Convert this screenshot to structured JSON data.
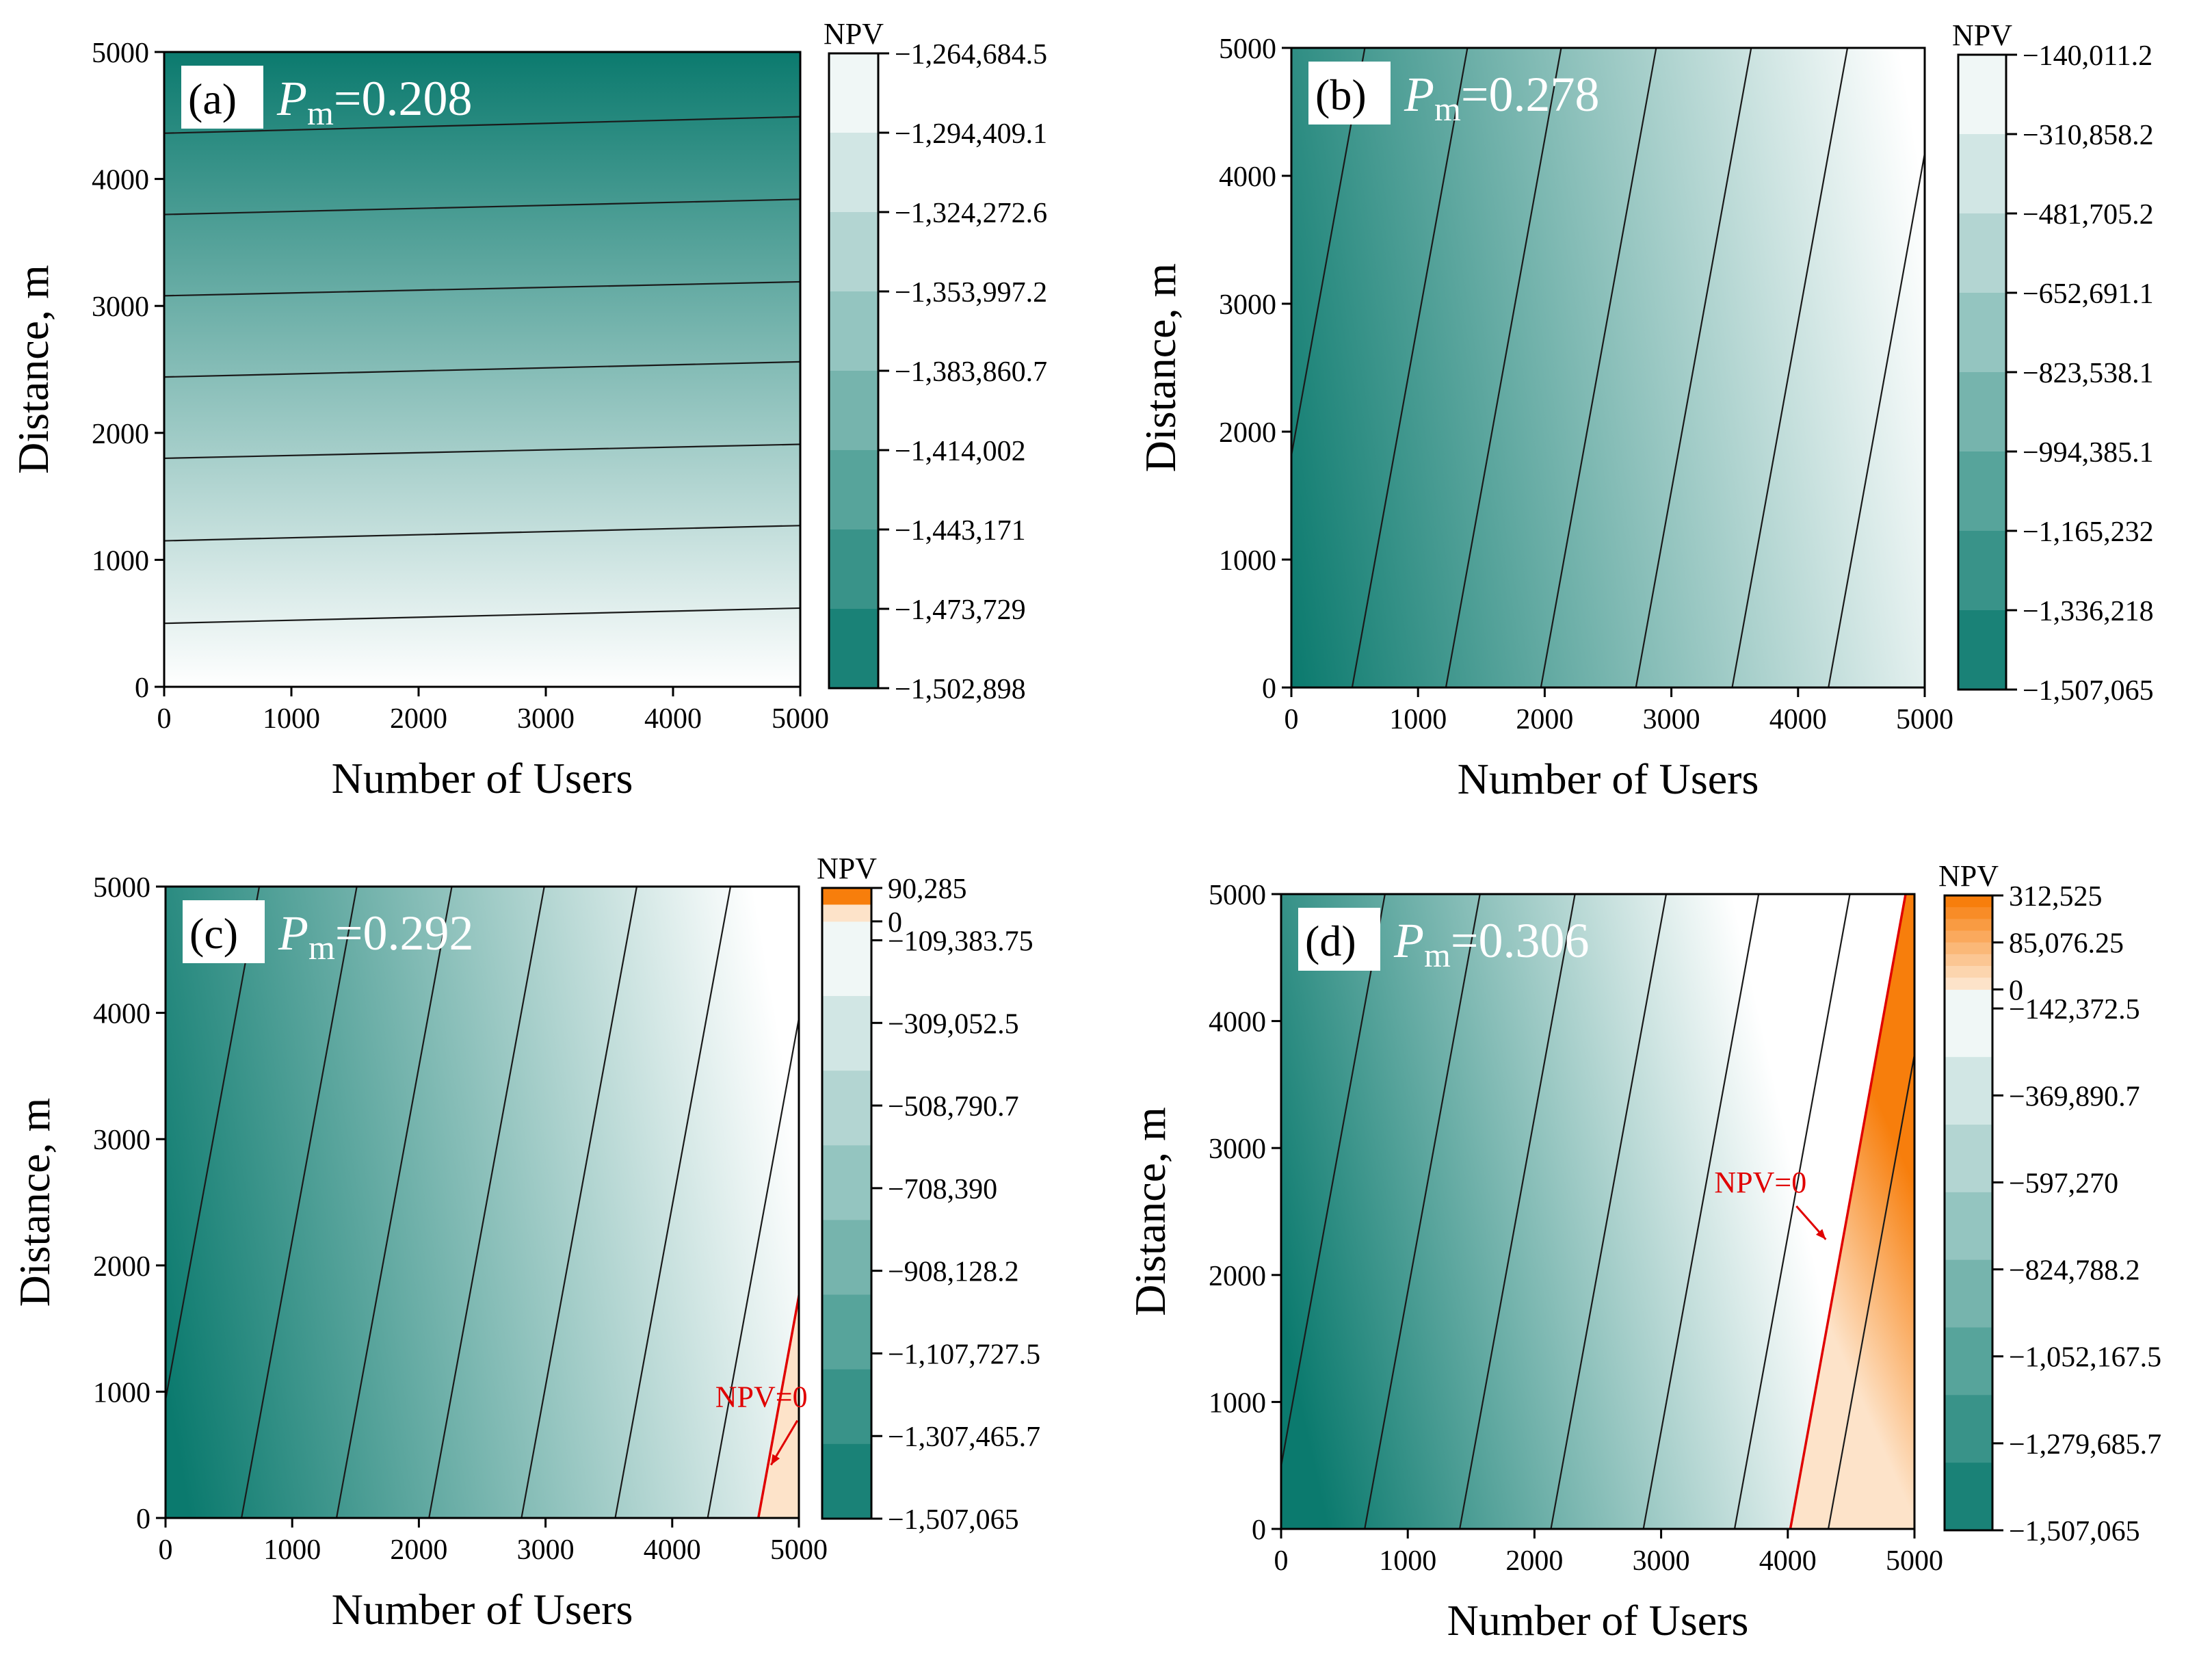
{
  "figure": {
    "background": "#ffffff",
    "colors": {
      "low": "#0b7a6e",
      "high": "#ffffff",
      "pos_low": "#fde3c9",
      "pos_high": "#f77e0c",
      "contour": "#1a1a1a",
      "zero_line": "#e00000"
    }
  },
  "chart_data": [
    {
      "type": "heatmap",
      "panel": "(a)",
      "pm_symbol": "P",
      "pm_sub": "m",
      "pm_value": "=0.208",
      "xlabel": "Number of Users",
      "ylabel": "Distance, m",
      "xlim": [
        0,
        5000
      ],
      "ylim": [
        0,
        5000
      ],
      "xticks": [
        "0",
        "1000",
        "2000",
        "3000",
        "4000",
        "5000"
      ],
      "yticks": [
        "0",
        "1000",
        "2000",
        "3000",
        "4000",
        "5000"
      ],
      "colorbar_title": "NPV",
      "colorbar_min": -1502898,
      "colorbar_max": -1264684.5,
      "colorbar_labels": [
        "−1,264,684.5",
        "−1,294,409.1",
        "−1,324,272.6",
        "−1,353,997.2",
        "−1,383,860.7",
        "−1,414,002",
        "−1,443,171",
        "−1,473,729",
        "−1,502,898"
      ],
      "positive_levels": 0,
      "contour_mode": "horizontal",
      "contour_lines": [
        {
          "y_at_x0": 500,
          "y_at_x5000": 620
        },
        {
          "y_at_x0": 1150,
          "y_at_x5000": 1270
        },
        {
          "y_at_x0": 1800,
          "y_at_x5000": 1910
        },
        {
          "y_at_x0": 2440,
          "y_at_x5000": 2560
        },
        {
          "y_at_x0": 3080,
          "y_at_x5000": 3190
        },
        {
          "y_at_x0": 3720,
          "y_at_x5000": 3840
        },
        {
          "y_at_x0": 4360,
          "y_at_x5000": 4490
        }
      ],
      "gradient_range": [
        0,
        5000
      ],
      "zero_label": ""
    },
    {
      "type": "heatmap",
      "panel": "(b)",
      "pm_symbol": "P",
      "pm_sub": "m",
      "pm_value": "=0.278",
      "xlabel": "Number of Users",
      "ylabel": "Distance, m",
      "xlim": [
        0,
        5000
      ],
      "ylim": [
        0,
        5000
      ],
      "xticks": [
        "0",
        "1000",
        "2000",
        "3000",
        "4000",
        "5000"
      ],
      "yticks": [
        "0",
        "1000",
        "2000",
        "3000",
        "4000",
        "5000"
      ],
      "colorbar_title": "NPV",
      "colorbar_min": -1507065,
      "colorbar_max": -140011.2,
      "colorbar_labels": [
        "−140,011.2",
        "−310,858.2",
        "−481,705.2",
        "−652,691.1",
        "−823,538.1",
        "−994,385.1",
        "−1,165,232",
        "−1,336,218",
        "−1,507,065"
      ],
      "positive_levels": 0,
      "contour_mode": "slanted",
      "contour_lines": [
        {
          "x_at_y0": -330,
          "x_at_y5000": 580
        },
        {
          "x_at_y0": 480,
          "x_at_y5000": 1390
        },
        {
          "x_at_y0": 1220,
          "x_at_y5000": 2130
        },
        {
          "x_at_y0": 1970,
          "x_at_y5000": 2880
        },
        {
          "x_at_y0": 2720,
          "x_at_y5000": 3630
        },
        {
          "x_at_y0": 3480,
          "x_at_y5000": 4390
        },
        {
          "x_at_y0": 4240,
          "x_at_y5000": 5150
        }
      ],
      "gradient_range": [
        -330,
        5150
      ],
      "zero_label": ""
    },
    {
      "type": "heatmap",
      "panel": "(c)",
      "pm_symbol": "P",
      "pm_sub": "m",
      "pm_value": "=0.292",
      "xlabel": "Number of Users",
      "ylabel": "Distance, m",
      "xlim": [
        0,
        5000
      ],
      "ylim": [
        0,
        5000
      ],
      "xticks": [
        "0",
        "1000",
        "2000",
        "3000",
        "4000",
        "5000"
      ],
      "yticks": [
        "0",
        "1000",
        "2000",
        "3000",
        "4000",
        "5000"
      ],
      "colorbar_title": "NPV",
      "colorbar_min": -1507065,
      "colorbar_max": 90285,
      "colorbar_labels": [
        "90,285",
        "0",
        "−109,383.75",
        "−309,052.5",
        "−508,790.7",
        "−708,390",
        "−908,128.2",
        "−1,107,727.5",
        "−1,307,465.7",
        "−1,507,065"
      ],
      "positive_levels": 2,
      "contour_mode": "slanted",
      "contour_lines": [
        {
          "x_at_y0": -170,
          "x_at_y5000": 740
        },
        {
          "x_at_y0": 600,
          "x_at_y5000": 1510
        },
        {
          "x_at_y0": 1350,
          "x_at_y5000": 2260
        },
        {
          "x_at_y0": 2080,
          "x_at_y5000": 2990
        },
        {
          "x_at_y0": 2810,
          "x_at_y5000": 3720
        },
        {
          "x_at_y0": 3550,
          "x_at_y5000": 4460
        },
        {
          "x_at_y0": 4280,
          "x_at_y5000": 5190
        }
      ],
      "zero_line": {
        "x_at_y0": 4680,
        "x_at_y5000": 5590
      },
      "zero_label": "NPV=0",
      "zero_label_at": [
        4340,
        880
      ],
      "zero_arrow_to": [
        4780,
        420
      ],
      "gradient_range": [
        -170,
        5000
      ]
    },
    {
      "type": "heatmap",
      "panel": "(d)",
      "pm_symbol": "P",
      "pm_sub": "m",
      "pm_value": "=0.306",
      "xlabel": "Number of Users",
      "ylabel": "Distance, m",
      "xlim": [
        0,
        5000
      ],
      "ylim": [
        0,
        5000
      ],
      "xticks": [
        "0",
        "1000",
        "2000",
        "3000",
        "4000",
        "5000"
      ],
      "yticks": [
        "0",
        "1000",
        "2000",
        "3000",
        "4000",
        "5000"
      ],
      "colorbar_title": "NPV",
      "colorbar_min": -1507065,
      "colorbar_max": 312525,
      "colorbar_labels": [
        "312,525",
        "85,076.25",
        "0",
        "−142,372.5",
        "−369,890.7",
        "−597,270",
        "−824,788.2",
        "−1,052,167.5",
        "−1,279,685.7",
        "−1,507,065"
      ],
      "positive_levels": 8,
      "contour_mode": "slanted",
      "contour_lines": [
        {
          "x_at_y0": -90,
          "x_at_y5000": 820
        },
        {
          "x_at_y0": 660,
          "x_at_y5000": 1570
        },
        {
          "x_at_y0": 1410,
          "x_at_y5000": 2320
        },
        {
          "x_at_y0": 2130,
          "x_at_y5000": 3040
        },
        {
          "x_at_y0": 2860,
          "x_at_y5000": 3770
        },
        {
          "x_at_y0": 3580,
          "x_at_y5000": 4490
        },
        {
          "x_at_y0": 4320,
          "x_at_y5000": 5230
        }
      ],
      "zero_line": {
        "x_at_y0": 4020,
        "x_at_y5000": 4930
      },
      "zero_label": "NPV=0",
      "zero_label_at": [
        3420,
        2650
      ],
      "zero_arrow_to": [
        4300,
        2280
      ],
      "gradient_range": [
        -90,
        4020
      ]
    }
  ]
}
